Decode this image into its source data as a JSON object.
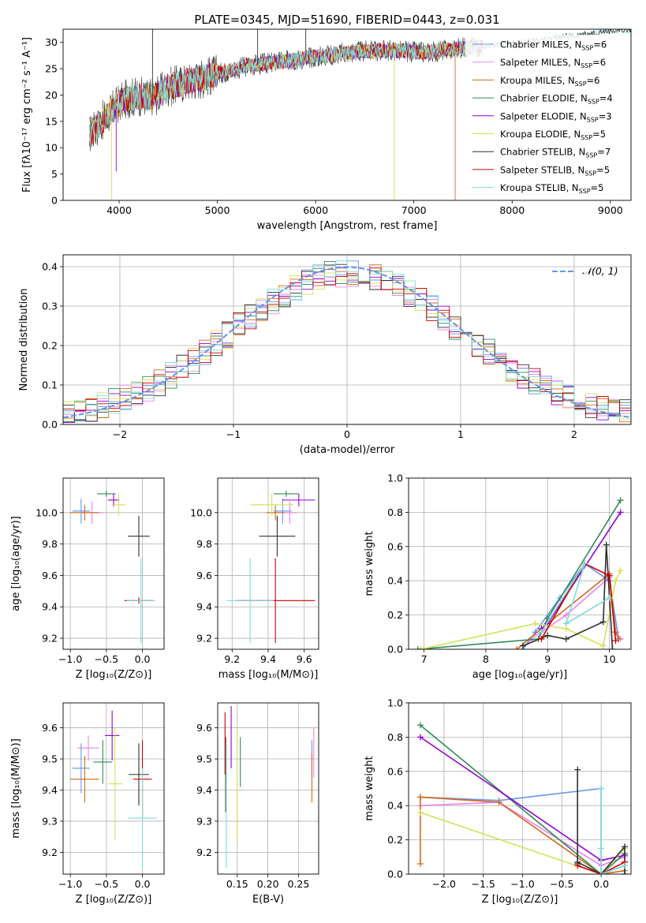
{
  "colors": {
    "chabrier_miles": "#6495ed",
    "salpeter_miles": "#ee82ee",
    "kroupa_miles": "#d2691e",
    "chabrier_elodie": "#2e8b57",
    "salpeter_elodie": "#9400d3",
    "kroupa_elodie": "#d4e157",
    "chabrier_stelib": "#303030",
    "salpeter_stelib": "#cc0000",
    "kroupa_stelib": "#7fdbdb",
    "grid": "#b0b0b0"
  },
  "chart_data": [
    {
      "id": "spectrum",
      "type": "line",
      "title": "PLATE=0345, MJD=51690, FIBERID=0443, z=0.031",
      "xlabel": "wavelength [Angstrom, rest frame]",
      "ylabel": "Flux [fλ10⁻¹⁷ erg cm⁻² s⁻¹ A⁻¹]",
      "xlim": [
        3430,
        9210
      ],
      "ylim": [
        0,
        32.5
      ],
      "xticks": [
        4000,
        5000,
        6000,
        7000,
        8000,
        9000
      ],
      "yticks": [
        0,
        5,
        10,
        15,
        20,
        25,
        30
      ],
      "grid": false,
      "legend_position": "right",
      "legend": [
        {
          "label": "Chabrier MILES, N",
          "sub": "SSP",
          "tail": "=6",
          "color_key": "chabrier_miles"
        },
        {
          "label": "Salpeter MILES, N",
          "sub": "SSP",
          "tail": "=6",
          "color_key": "salpeter_miles"
        },
        {
          "label": "Kroupa MILES, N",
          "sub": "SSP",
          "tail": "=6",
          "color_key": "kroupa_miles"
        },
        {
          "label": "Chabrier ELODIE, N",
          "sub": "SSP",
          "tail": "=4",
          "color_key": "chabrier_elodie"
        },
        {
          "label": "Salpeter ELODIE, N",
          "sub": "SSP",
          "tail": "=3",
          "color_key": "salpeter_elodie"
        },
        {
          "label": "Kroupa ELODIE, N",
          "sub": "SSP",
          "tail": "=5",
          "color_key": "kroupa_elodie"
        },
        {
          "label": "Chabrier STELIB, N",
          "sub": "SSP",
          "tail": "=7",
          "color_key": "chabrier_stelib"
        },
        {
          "label": "Salpeter STELIB, N",
          "sub": "SSP",
          "tail": "=5",
          "color_key": "salpeter_stelib"
        },
        {
          "label": "Kroupa STELIB, N",
          "sub": "SSP",
          "tail": "=5",
          "color_key": "kroupa_stelib"
        }
      ],
      "continuum": {
        "x": [
          3700,
          3800,
          3900,
          4000,
          4100,
          4200,
          4300,
          4400,
          4500,
          4700,
          4900,
          5100,
          5300,
          5500,
          5700,
          5900,
          6100,
          6300,
          6500,
          6700,
          6900,
          7100,
          7300,
          7500,
          7700,
          7900,
          8100,
          8300,
          8500,
          8700,
          8900,
          9100
        ],
        "y": [
          12.5,
          14.5,
          16.5,
          18.5,
          19.5,
          19.8,
          19.5,
          20.2,
          21.5,
          22.5,
          23.5,
          24.5,
          25.5,
          26.0,
          26.5,
          27.0,
          27.5,
          28.0,
          28.3,
          28.5,
          28.3,
          28.0,
          28.5,
          29.0,
          29.3,
          29.7,
          30.0,
          30.5,
          31.0,
          31.5,
          32.0,
          32.3
        ]
      },
      "observed_end": 7700
    },
    {
      "id": "residuals",
      "type": "histogram",
      "xlabel": "(data-model)/error",
      "ylabel": "Normed distribution",
      "xlim": [
        -2.5,
        2.5
      ],
      "ylim": [
        0,
        0.43
      ],
      "xticks": [
        -2,
        -1,
        0,
        1,
        2
      ],
      "yticks": [
        0.0,
        0.1,
        0.2,
        0.3,
        0.4
      ],
      "grid": true,
      "legend_position": "top-right",
      "reference_label": "𝒩(0, 1)",
      "reference_color": "#6495ed",
      "bin_width": 0.1
    },
    {
      "id": "age-vs-Z",
      "type": "errorbar",
      "xlabel": "Z [log₁₀(Z/Z⊙)]",
      "ylabel": "age  [log₁₀(age/yr)]",
      "xlim": [
        -1.1,
        0.3
      ],
      "ylim": [
        9.13,
        10.22
      ],
      "xticks": [
        -1.0,
        -0.5,
        0.0
      ],
      "yticks": [
        9.2,
        9.4,
        9.6,
        9.8,
        10.0
      ],
      "grid": true,
      "points": [
        {
          "model": "chabrier_miles",
          "x": -0.85,
          "y": 10.01,
          "xerr": 0.12,
          "yerr": 0.08
        },
        {
          "model": "salpeter_miles",
          "x": -0.7,
          "y": 10.0,
          "xerr": 0.16,
          "yerr": 0.07
        },
        {
          "model": "kroupa_miles",
          "x": -0.8,
          "y": 10.0,
          "xerr": 0.2,
          "yerr": 0.05
        },
        {
          "model": "chabrier_elodie",
          "x": -0.5,
          "y": 10.12,
          "xerr": 0.13,
          "yerr": 0.02
        },
        {
          "model": "salpeter_elodie",
          "x": -0.4,
          "y": 10.08,
          "xerr": 0.08,
          "yerr": 0.04
        },
        {
          "model": "kroupa_elodie",
          "x": -0.33,
          "y": 10.05,
          "xerr": 0.1,
          "yerr": 0.07
        },
        {
          "model": "chabrier_stelib",
          "x": -0.05,
          "y": 9.85,
          "xerr": 0.15,
          "yerr": 0.13
        },
        {
          "model": "salpeter_stelib",
          "x": -0.05,
          "y": 9.44,
          "xerr": 0.2,
          "yerr": 0.02
        },
        {
          "model": "kroupa_stelib",
          "x": -0.02,
          "y": 9.44,
          "xerr": 0.2,
          "yerr": 0.27
        }
      ]
    },
    {
      "id": "age-vs-mass",
      "type": "errorbar",
      "xlabel": "mass [log₁₀(M/M⊙)]",
      "ylabel": "",
      "xlim": [
        9.12,
        9.68
      ],
      "ylim": [
        9.13,
        10.22
      ],
      "xticks": [
        9.2,
        9.4,
        9.6
      ],
      "yticks": [
        9.2,
        9.4,
        9.6,
        9.8,
        10.0
      ],
      "grid": true,
      "points": [
        {
          "model": "chabrier_miles",
          "x": 9.48,
          "y": 10.01,
          "xerr": 0.05,
          "yerr": 0.08
        },
        {
          "model": "salpeter_miles",
          "x": 9.52,
          "y": 10.0,
          "xerr": 0.04,
          "yerr": 0.07
        },
        {
          "model": "kroupa_miles",
          "x": 9.44,
          "y": 10.0,
          "xerr": 0.05,
          "yerr": 0.05
        },
        {
          "model": "chabrier_elodie",
          "x": 9.5,
          "y": 10.12,
          "xerr": 0.07,
          "yerr": 0.02
        },
        {
          "model": "salpeter_elodie",
          "x": 9.57,
          "y": 10.08,
          "xerr": 0.09,
          "yerr": 0.04
        },
        {
          "model": "kroupa_elodie",
          "x": 9.42,
          "y": 10.05,
          "xerr": 0.12,
          "yerr": 0.07
        },
        {
          "model": "chabrier_stelib",
          "x": 9.45,
          "y": 9.85,
          "xerr": 0.1,
          "yerr": 0.13
        },
        {
          "model": "salpeter_stelib",
          "x": 9.44,
          "y": 9.44,
          "xerr": 0.22,
          "yerr": 0.27
        },
        {
          "model": "kroupa_stelib",
          "x": 9.3,
          "y": 9.44,
          "xerr": 0.13,
          "yerr": 0.27
        }
      ]
    },
    {
      "id": "weight-vs-age",
      "type": "line",
      "xlabel": "age  [log₁₀(age/yr)]",
      "ylabel": "mass weight",
      "xlim": [
        6.75,
        10.35
      ],
      "ylim": [
        0,
        1.0
      ],
      "xticks": [
        7,
        8,
        9,
        10
      ],
      "yticks": [
        0.0,
        0.2,
        0.4,
        0.6,
        0.8,
        1.0
      ],
      "grid": true,
      "series": [
        {
          "model": "chabrier_miles",
          "points": [
            [
              8.6,
              0.0
            ],
            [
              8.8,
              0.1
            ],
            [
              9.2,
              0.3
            ],
            [
              9.6,
              0.5
            ],
            [
              10.0,
              0.4
            ],
            [
              10.15,
              0.06
            ]
          ]
        },
        {
          "model": "salpeter_miles",
          "points": [
            [
              8.7,
              0.05
            ],
            [
              9.3,
              0.2
            ],
            [
              10.0,
              0.42
            ],
            [
              10.1,
              0.1
            ],
            [
              10.18,
              0.06
            ]
          ]
        },
        {
          "model": "kroupa_miles",
          "points": [
            [
              8.5,
              0.0
            ],
            [
              9.0,
              0.15
            ],
            [
              10.0,
              0.44
            ],
            [
              10.1,
              0.1
            ],
            [
              10.15,
              0.06
            ]
          ]
        },
        {
          "model": "chabrier_elodie",
          "points": [
            [
              6.9,
              0.0
            ],
            [
              8.85,
              0.06
            ],
            [
              9.0,
              0.18
            ],
            [
              10.18,
              0.87
            ]
          ]
        },
        {
          "model": "salpeter_elodie",
          "points": [
            [
              8.9,
              0.12
            ],
            [
              9.0,
              0.15
            ],
            [
              10.18,
              0.8
            ]
          ]
        },
        {
          "model": "kroupa_elodie",
          "points": [
            [
              6.95,
              0.0
            ],
            [
              8.8,
              0.15
            ],
            [
              9.3,
              0.12
            ],
            [
              9.9,
              0.02
            ],
            [
              10.1,
              0.4
            ],
            [
              10.18,
              0.46
            ]
          ]
        },
        {
          "model": "chabrier_stelib",
          "points": [
            [
              8.6,
              0.02
            ],
            [
              9.0,
              0.08
            ],
            [
              9.3,
              0.06
            ],
            [
              9.9,
              0.16
            ],
            [
              9.95,
              0.61
            ],
            [
              10.05,
              0.0
            ]
          ]
        },
        {
          "model": "salpeter_stelib",
          "points": [
            [
              8.9,
              0.06
            ],
            [
              9.6,
              0.5
            ],
            [
              10.0,
              0.43
            ],
            [
              10.1,
              0.05
            ]
          ]
        },
        {
          "model": "kroupa_stelib",
          "points": [
            [
              8.9,
              0.1
            ],
            [
              9.6,
              0.5
            ],
            [
              9.3,
              0.15
            ],
            [
              10.0,
              0.3
            ]
          ]
        }
      ]
    },
    {
      "id": "mass-vs-Z",
      "type": "errorbar",
      "xlabel": "Z [log₁₀(Z/Z⊙)]",
      "ylabel": "mass [log₁₀(M/M⊙)]",
      "xlim": [
        -1.1,
        0.3
      ],
      "ylim": [
        9.13,
        9.68
      ],
      "xticks": [
        -1.0,
        -0.5,
        0.0
      ],
      "yticks": [
        9.2,
        9.3,
        9.4,
        9.5,
        9.6
      ],
      "grid": true,
      "points": [
        {
          "model": "chabrier_miles",
          "x": -0.85,
          "y": 9.47,
          "xerr": 0.12,
          "yerr": 0.08
        },
        {
          "model": "salpeter_miles",
          "x": -0.75,
          "y": 9.535,
          "xerr": 0.15,
          "yerr": 0.04
        },
        {
          "model": "kroupa_miles",
          "x": -0.8,
          "y": 9.435,
          "xerr": 0.2,
          "yerr": 0.075
        },
        {
          "model": "chabrier_elodie",
          "x": -0.55,
          "y": 9.49,
          "xerr": 0.13,
          "yerr": 0.07
        },
        {
          "model": "salpeter_elodie",
          "x": -0.42,
          "y": 9.575,
          "xerr": 0.1,
          "yerr": 0.08
        },
        {
          "model": "kroupa_elodie",
          "x": -0.38,
          "y": 9.42,
          "xerr": 0.1,
          "yerr": 0.18
        },
        {
          "model": "chabrier_stelib",
          "x": -0.05,
          "y": 9.45,
          "xerr": 0.14,
          "yerr": 0.1
        },
        {
          "model": "salpeter_stelib",
          "x": 0.0,
          "y": 9.435,
          "xerr": 0.13,
          "yerr": 0.125
        },
        {
          "model": "kroupa_stelib",
          "x": 0.0,
          "y": 9.31,
          "xerr": 0.2,
          "yerr": 0.16
        }
      ]
    },
    {
      "id": "mass-vs-ebv",
      "type": "errorbar",
      "xlabel": "E(B-V)",
      "ylabel": "",
      "xlim": [
        0.118,
        0.283
      ],
      "ylim": [
        9.13,
        9.68
      ],
      "xticks": [
        0.15,
        0.2,
        0.25
      ],
      "yticks": [
        9.2,
        9.3,
        9.4,
        9.5,
        9.6
      ],
      "grid": true,
      "points": [
        {
          "model": "chabrier_miles",
          "x": 0.272,
          "y": 9.5,
          "xerr": 0.0,
          "yerr": 0.06
        },
        {
          "model": "salpeter_miles",
          "x": 0.275,
          "y": 9.52,
          "xerr": 0.0,
          "yerr": 0.08
        },
        {
          "model": "kroupa_miles",
          "x": 0.272,
          "y": 9.44,
          "xerr": 0.0,
          "yerr": 0.08
        },
        {
          "model": "chabrier_elodie",
          "x": 0.155,
          "y": 9.49,
          "xerr": 0.0,
          "yerr": 0.08
        },
        {
          "model": "salpeter_elodie",
          "x": 0.14,
          "y": 9.57,
          "xerr": 0.0,
          "yerr": 0.1
        },
        {
          "model": "kroupa_elodie",
          "x": 0.15,
          "y": 9.42,
          "xerr": 0.0,
          "yerr": 0.18
        },
        {
          "model": "chabrier_stelib",
          "x": 0.131,
          "y": 9.45,
          "xerr": 0.0,
          "yerr": 0.12
        },
        {
          "model": "salpeter_stelib",
          "x": 0.13,
          "y": 9.55,
          "xerr": 0.0,
          "yerr": 0.1
        },
        {
          "model": "kroupa_stelib",
          "x": 0.132,
          "y": 9.35,
          "xerr": 0.0,
          "yerr": 0.2
        }
      ]
    },
    {
      "id": "weight-vs-Z",
      "type": "line",
      "xlabel": "Z [log₁₀(Z/Z⊙)]",
      "ylabel": "mass weight",
      "xlim": [
        -2.45,
        0.38
      ],
      "ylim": [
        0,
        1.0
      ],
      "xticks": [
        -2.0,
        -1.5,
        -1.0,
        -0.5,
        0.0
      ],
      "yticks": [
        0.0,
        0.2,
        0.4,
        0.6,
        0.8,
        1.0
      ],
      "grid": true,
      "series": [
        {
          "model": "chabrier_miles",
          "points": [
            [
              -2.3,
              0.45
            ],
            [
              -1.3,
              0.43
            ],
            [
              0.0,
              0.5
            ],
            [
              0.0,
              0.0
            ],
            [
              0.3,
              0.05
            ]
          ]
        },
        {
          "model": "salpeter_miles",
          "points": [
            [
              -2.3,
              0.4
            ],
            [
              -1.3,
              0.42
            ],
            [
              0.0,
              0.05
            ],
            [
              0.3,
              0.1
            ]
          ]
        },
        {
          "model": "kroupa_miles",
          "points": [
            [
              -2.3,
              0.06
            ],
            [
              -2.3,
              0.45
            ],
            [
              -1.3,
              0.42
            ],
            [
              0.0,
              0.0
            ],
            [
              0.3,
              0.02
            ]
          ]
        },
        {
          "model": "chabrier_elodie",
          "points": [
            [
              -2.3,
              0.87
            ],
            [
              0.0,
              0.0
            ],
            [
              0.3,
              0.12
            ]
          ]
        },
        {
          "model": "salpeter_elodie",
          "points": [
            [
              -2.3,
              0.8
            ],
            [
              0.0,
              0.08
            ],
            [
              0.3,
              0.11
            ]
          ]
        },
        {
          "model": "kroupa_elodie",
          "points": [
            [
              -2.3,
              0.36
            ],
            [
              0.0,
              0.0
            ],
            [
              0.3,
              0.15
            ]
          ]
        },
        {
          "model": "chabrier_stelib",
          "points": [
            [
              -0.3,
              0.06
            ],
            [
              -0.3,
              0.61
            ],
            [
              -0.3,
              0.07
            ],
            [
              0.0,
              0.0
            ],
            [
              0.3,
              0.16
            ],
            [
              0.3,
              0.0
            ]
          ]
        },
        {
          "model": "salpeter_stelib",
          "points": [
            [
              -0.3,
              0.05
            ],
            [
              0.0,
              0.0
            ],
            [
              0.3,
              0.07
            ]
          ]
        },
        {
          "model": "kroupa_stelib",
          "points": [
            [
              0.0,
              0.5
            ],
            [
              0.0,
              0.15
            ],
            [
              0.0,
              0.0
            ],
            [
              0.3,
              0.05
            ]
          ]
        }
      ]
    }
  ]
}
